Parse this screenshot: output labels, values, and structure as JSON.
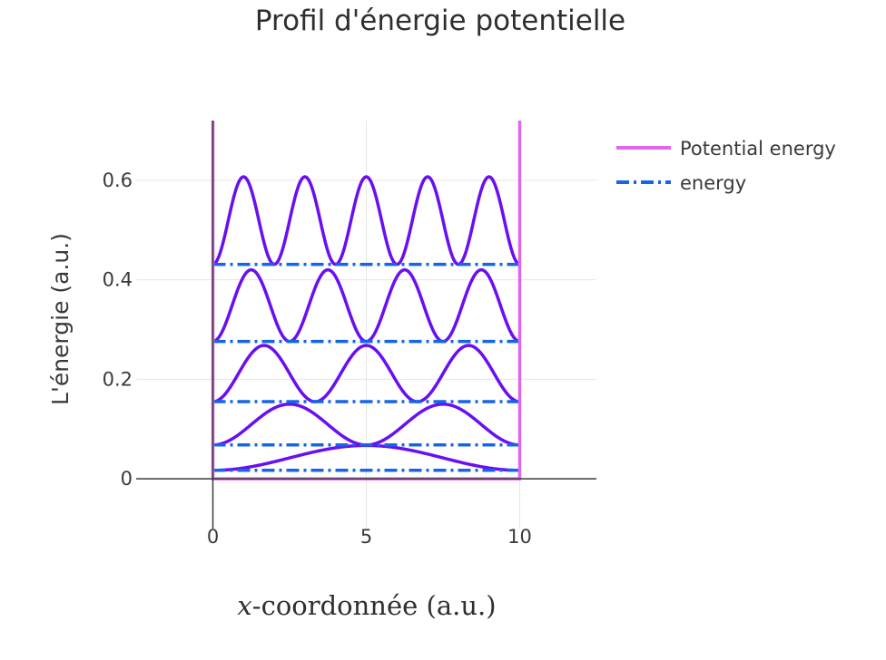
{
  "chart_data": {
    "type": "line",
    "title": "Profil d'énergie potentielle",
    "ylabel": "L'énergie (a.u.)",
    "xlabel_var": "x",
    "xlabel_rest": "-coordonnée (a.u.)",
    "xlim": [
      -2.5,
      12.5
    ],
    "ylim": [
      -0.1,
      0.72
    ],
    "xticks": [
      0,
      5,
      10
    ],
    "xtick_labels": [
      "0",
      "5",
      "10"
    ],
    "yticks": [
      0,
      0.2,
      0.4,
      0.6
    ],
    "ytick_labels": [
      "0",
      "0.2",
      "0.4",
      "0.6"
    ],
    "grid": true,
    "legend_position": "top-right",
    "box_length": 10,
    "colors": {
      "potential": "#e066ee",
      "energy": "#1565e8",
      "wavefunction": "#6a0ff0",
      "grid": "#e6e6e6",
      "axis": "#3a3a3a"
    },
    "series": [
      {
        "name": "Potential energy",
        "style": "solid",
        "x": [
          0,
          0,
          10,
          10
        ],
        "y": [
          0.72,
          0,
          0,
          0.72
        ]
      },
      {
        "name": "energy",
        "style": "dashdot",
        "levels": [
          0.017,
          0.068,
          0.155,
          0.276,
          0.431
        ],
        "x_range": [
          0,
          10
        ]
      }
    ],
    "wavefunctions": [
      {
        "n": 1,
        "baseline": 0.017,
        "peak": 0.067
      },
      {
        "n": 2,
        "baseline": 0.068,
        "peak": 0.15
      },
      {
        "n": 3,
        "baseline": 0.155,
        "peak": 0.268
      },
      {
        "n": 4,
        "baseline": 0.276,
        "peak": 0.42
      },
      {
        "n": 5,
        "baseline": 0.431,
        "peak": 0.607
      }
    ]
  }
}
